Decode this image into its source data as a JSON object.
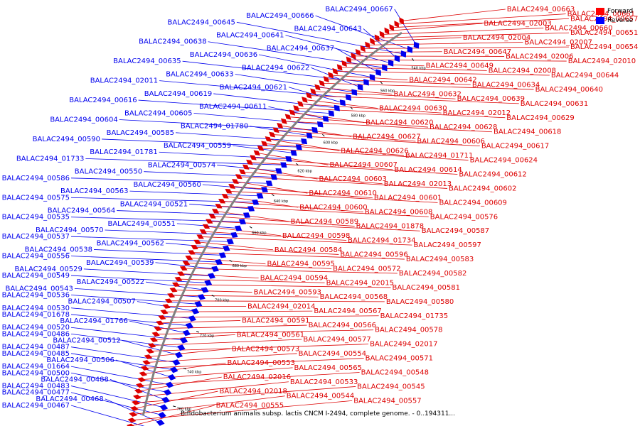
{
  "caption": "Bifidobacterium animalis subsp. lactis CNCM I-2494, complete genome. - 0..194311...",
  "legend": [
    {
      "label": "Forward",
      "color": "#ff0000"
    },
    {
      "label": "Reverse",
      "color": "#0000ff"
    }
  ],
  "colors": {
    "forward": "#dd0000",
    "reverse": "#0000ee",
    "backbone": "#808080"
  },
  "ticks": [
    "540 kbp",
    "560 kbp",
    "580 kbp",
    "600 kbp",
    "620 kbp",
    "640 kbp",
    "660 kbp",
    "680 kbp",
    "700 kbp",
    "720 kbp",
    "740 kbp",
    "760 kbp"
  ],
  "reverse_genes": [
    "BALAC2494_00667",
    "BALAC2494_00666",
    "BALAC2494_00645",
    "BALAC2494_00643",
    "BALAC2494_00641",
    "BALAC2494_00638",
    "BALAC2494_00637",
    "BALAC2494_00636",
    "BALAC2494_00635",
    "BALAC2494_00622",
    "BALAC2494_00633",
    "BALAC2494_02011",
    "BALAC2494_00621",
    "BALAC2494_00619",
    "BALAC2494_00616",
    "BALAC2494_00611",
    "BALAC2494_00605",
    "BALAC2494_00604",
    "BALAC2494_01780",
    "BALAC2494_00585",
    "BALAC2494_00590",
    "BALAC2494_00559",
    "BALAC2494_01781",
    "BALAC2494_01733",
    "BALAC2494_00574",
    "BALAC2494_00550",
    "BALAC2494_00586",
    "BALAC2494_00560",
    "BALAC2494_00563",
    "BALAC2494_00575",
    "BALAC2494_00521",
    "BALAC2494_00564",
    "BALAC2494_00535",
    "BALAC2494_00551",
    "BALAC2494_00570",
    "BALAC2494_00537",
    "BALAC2494_00562",
    "BALAC2494_00538",
    "BALAC2494_00556",
    "BALAC2494_00539",
    "BALAC2494_00529",
    "BALAC2494_00549",
    "BALAC2494_00522",
    "BALAC2494_00543",
    "BALAC2494_00536",
    "BALAC2494_00507",
    "BALAC2494_00530",
    "BALAC2494_01678",
    "BALAC2494_01766",
    "BALAC2494_00520",
    "BALAC2494_00486",
    "BALAC2494_00512",
    "BALAC2494_00487",
    "BALAC2494_00485",
    "BALAC2494_00506",
    "BALAC2494_01664",
    "BALAC2494_00500",
    "BALAC2494_00488",
    "BALAC2494_00483",
    "BALAC2494_00477",
    "BALAC2494_00468",
    "BALAC2494_00467"
  ],
  "forward_genes": [
    "BALAC2494_00663",
    "BALAC2494_00661",
    "BALAC2494_00657",
    "BALAC2494_02003",
    "BALAC2494_00660",
    "BALAC2494_00651",
    "BALAC2494_02004",
    "BALAC2494_02007",
    "BALAC2494_00654",
    "BALAC2494_00647",
    "BALAC2494_02006",
    "BALAC2494_02010",
    "BALAC2494_00649",
    "BALAC2494_02008",
    "BALAC2494_00644",
    "BALAC2494_00642",
    "BALAC2494_00634",
    "BALAC2494_00640",
    "BALAC2494_00632",
    "BALAC2494_00639",
    "BALAC2494_00631",
    "BALAC2494_00630",
    "BALAC2494_02012",
    "BALAC2494_00629",
    "BALAC2494_00620",
    "BALAC2494_00628",
    "BALAC2494_00618",
    "BALAC2494_00627",
    "BALAC2494_00606",
    "BALAC2494_00617",
    "BALAC2494_00626",
    "BALAC2494_01711",
    "BALAC2494_00624",
    "BALAC2494_00607",
    "BALAC2494_00614",
    "BALAC2494_00612",
    "BALAC2494_00603",
    "BALAC2494_02013",
    "BALAC2494_00602",
    "BALAC2494_00610",
    "BALAC2494_00601",
    "BALAC2494_00609",
    "BALAC2494_00600",
    "BALAC2494_00608",
    "BALAC2494_00576",
    "BALAC2494_00589",
    "BALAC2494_01878",
    "BALAC2494_00587",
    "BALAC2494_00598",
    "BALAC2494_01734",
    "BALAC2494_00597",
    "BALAC2494_00584",
    "BALAC2494_00596",
    "BALAC2494_00583",
    "BALAC2494_00595",
    "BALAC2494_00572",
    "BALAC2494_00582",
    "BALAC2494_00594",
    "BALAC2494_02015",
    "BALAC2494_00581",
    "BALAC2494_00593",
    "BALAC2494_00568",
    "BALAC2494_00580",
    "BALAC2494_02014",
    "BALAC2494_00567",
    "BALAC2494_01735",
    "BALAC2494_00591",
    "BALAC2494_00566",
    "BALAC2494_00578",
    "BALAC2494_00561",
    "BALAC2494_00577",
    "BALAC2494_02017",
    "BALAC2494_00573",
    "BALAC2494_00554",
    "BALAC2494_00571",
    "BALAC2494_00553",
    "BALAC2494_00565",
    "BALAC2494_00548",
    "BALAC2494_02016",
    "BALAC2494_00533",
    "BALAC2494_00545",
    "BALAC2494_02018",
    "BALAC2494_00544",
    "BALAC2494_00557",
    "BALAC2494_00555"
  ]
}
